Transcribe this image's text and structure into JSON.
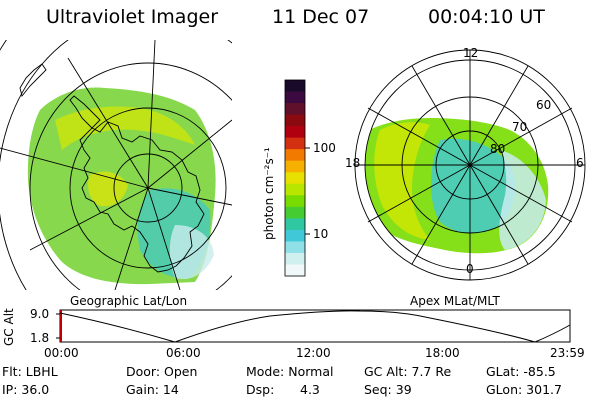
{
  "header": {
    "title": "Ultraviolet Imager",
    "date": "11 Dec 07",
    "time": "00:04:10 UT"
  },
  "left_map": {
    "caption": "Geographic Lat/Lon"
  },
  "right_map": {
    "caption": "Apex MLat/MLT",
    "mlt_labels": [
      "12",
      "18",
      "6",
      "0"
    ],
    "mlat_labels": [
      "60",
      "70",
      "80"
    ]
  },
  "colorbar": {
    "unit_label": "photon cm⁻²s⁻¹",
    "ticks": [
      "100",
      "10"
    ],
    "colors": [
      "#1a0a2a",
      "#3a0a40",
      "#60102a",
      "#8a0a10",
      "#b00010",
      "#d23010",
      "#f27a00",
      "#f5b000",
      "#e8e000",
      "#b8e600",
      "#78dc00",
      "#44cc30",
      "#30c8a0",
      "#40c8d8",
      "#90e0e8",
      "#d0f0f0",
      "#f0f8f8"
    ]
  },
  "gc_plot": {
    "axis_label": "GC Alt",
    "y_ticks": [
      "9.0",
      "1.8"
    ],
    "x_ticks": [
      "00:00",
      "06:00",
      "12:00",
      "18:00",
      "23:59"
    ]
  },
  "info": {
    "flt": "Flt: LBHL",
    "ip": "IP: 36.0",
    "door": "Door: Open",
    "gain": "Gain: 14",
    "mode": "Mode: Normal",
    "dsp_label": "Dsp:",
    "dsp_value": "4.3",
    "gc_alt": "GC Alt: 7.7 Re",
    "seq": "Seq: 39",
    "glat": "GLat: -85.5",
    "glon": "GLon: 301.7"
  }
}
